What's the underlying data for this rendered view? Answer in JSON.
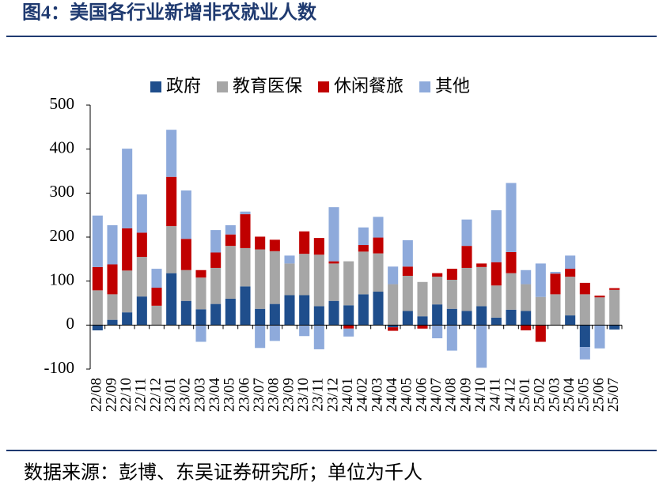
{
  "chart_data": {
    "type": "stacked_bar",
    "title": "图4：美国各行业新增非农就业人数",
    "source": "数据来源：彭博、东吴证券研究所；单位为千人",
    "categories": [
      "22/08",
      "22/09",
      "22/10",
      "22/11",
      "22/12",
      "23/01",
      "23/02",
      "23/03",
      "23/04",
      "23/05",
      "23/06",
      "23/07",
      "23/08",
      "23/09",
      "23/10",
      "23/11",
      "23/12",
      "24/01",
      "24/02",
      "24/03",
      "24/04",
      "24/05",
      "24/06",
      "24/07",
      "24/08",
      "24/09",
      "24/10",
      "24/11",
      "24/12",
      "25/01",
      "25/02",
      "25/03",
      "25/04",
      "25/05",
      "25/06",
      "25/07"
    ],
    "series": [
      {
        "name": "政府",
        "color": "#1f4e8c",
        "values": [
          -12,
          12,
          29,
          65,
          0,
          118,
          55,
          36,
          48,
          60,
          88,
          37,
          48,
          68,
          68,
          43,
          55,
          45,
          70,
          76,
          -5,
          32,
          20,
          47,
          37,
          32,
          43,
          17,
          35,
          32,
          0,
          0,
          22,
          -50,
          0,
          -10
        ]
      },
      {
        "name": "教育医保",
        "color": "#a6a6a6",
        "values": [
          79,
          58,
          95,
          90,
          44,
          107,
          70,
          72,
          82,
          120,
          87,
          135,
          120,
          72,
          94,
          117,
          85,
          100,
          97,
          87,
          93,
          80,
          78,
          63,
          66,
          98,
          89,
          73,
          83,
          61,
          64,
          70,
          88,
          70,
          63,
          80
        ]
      },
      {
        "name": "休闲餐旅",
        "color": "#c00000",
        "values": [
          53,
          68,
          96,
          55,
          41,
          112,
          71,
          17,
          35,
          26,
          77,
          29,
          26,
          0,
          51,
          38,
          5,
          -8,
          15,
          36,
          -8,
          21,
          -8,
          8,
          25,
          50,
          8,
          53,
          48,
          -12,
          -38,
          47,
          18,
          26,
          4,
          4
        ]
      },
      {
        "name": "其他",
        "color": "#8eaadb",
        "values": [
          117,
          89,
          181,
          87,
          43,
          107,
          110,
          -38,
          51,
          21,
          6,
          -52,
          -36,
          18,
          -25,
          -55,
          123,
          -18,
          40,
          47,
          40,
          60,
          0,
          -30,
          -58,
          60,
          -97,
          118,
          157,
          32,
          76,
          4,
          30,
          -28,
          -53,
          0
        ]
      }
    ],
    "ylim": [
      -100,
      500
    ],
    "yticks": [
      -100,
      0,
      100,
      200,
      300,
      400,
      500
    ]
  }
}
